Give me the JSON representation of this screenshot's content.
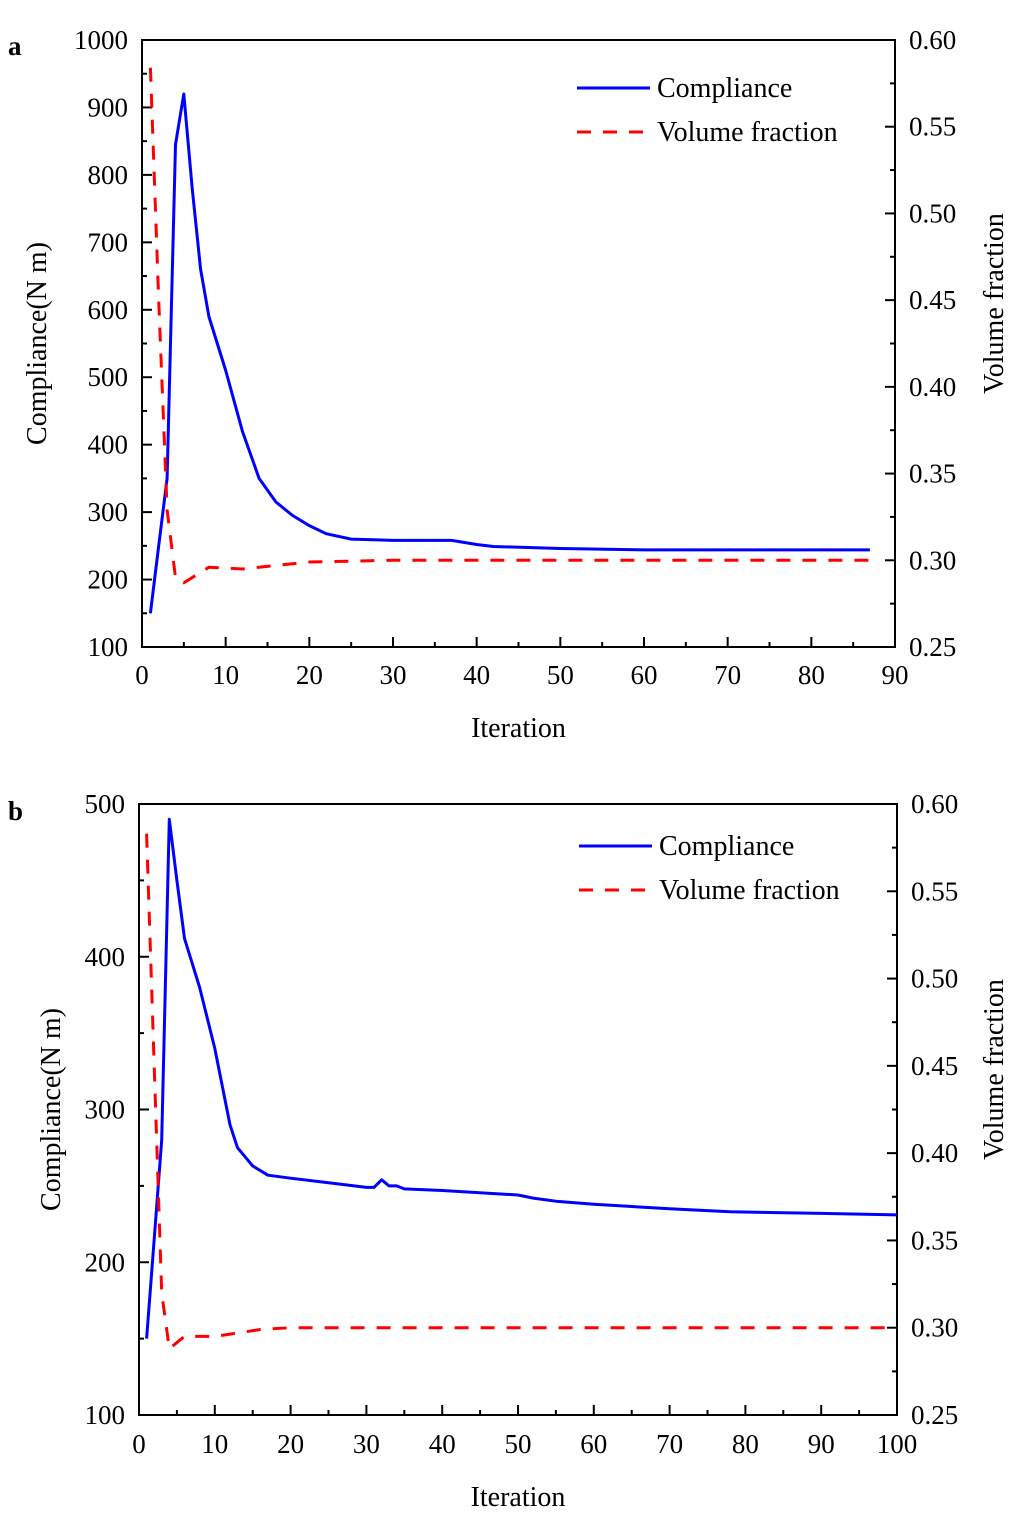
{
  "chart_data": [
    {
      "panel_label": "a",
      "type": "line",
      "xlabel": "Iteration",
      "ylabel": "Compliance(N m)",
      "y2label": "Volume fraction",
      "xlim": [
        0,
        90
      ],
      "ylim": [
        100,
        1000
      ],
      "y2lim": [
        0.25,
        0.6
      ],
      "xticks": [
        0,
        10,
        20,
        30,
        40,
        50,
        60,
        70,
        80,
        90
      ],
      "yticks": [
        100,
        200,
        300,
        400,
        500,
        600,
        700,
        800,
        900,
        1000
      ],
      "y2ticks": [
        "0.25",
        "0.30",
        "0.35",
        "0.40",
        "0.45",
        "0.50",
        "0.55",
        "0.60"
      ],
      "legend_position": "top-right",
      "series": [
        {
          "name": "Compliance",
          "axis": "left",
          "color": "#0000ff",
          "style": "solid",
          "x": [
            1,
            2,
            3,
            4,
            5,
            6,
            7,
            8,
            10,
            12,
            14,
            16,
            18,
            20,
            22,
            25,
            30,
            37,
            40,
            42,
            50,
            60,
            87
          ],
          "y": [
            150,
            250,
            350,
            845,
            920,
            780,
            660,
            590,
            510,
            420,
            350,
            315,
            295,
            280,
            268,
            260,
            258,
            258,
            252,
            249,
            246,
            244,
            244
          ]
        },
        {
          "name": "Volume fraction",
          "axis": "right",
          "color": "#ff0000",
          "style": "dashed",
          "x": [
            1,
            2,
            3,
            4,
            5,
            8,
            12,
            20,
            30,
            40,
            87
          ],
          "y": [
            0.584,
            0.45,
            0.329,
            0.29,
            0.287,
            0.296,
            0.295,
            0.299,
            0.3,
            0.3,
            0.3
          ]
        }
      ]
    },
    {
      "panel_label": "b",
      "type": "line",
      "xlabel": "Iteration",
      "ylabel": "Compliance(N m)",
      "y2label": "Volume fraction",
      "xlim": [
        0,
        100
      ],
      "ylim": [
        100,
        500
      ],
      "y2lim": [
        0.25,
        0.6
      ],
      "xticks": [
        0,
        10,
        20,
        30,
        40,
        50,
        60,
        70,
        80,
        90,
        100
      ],
      "yticks": [
        100,
        200,
        300,
        400,
        500
      ],
      "y2ticks": [
        "0.25",
        "0.30",
        "0.35",
        "0.40",
        "0.45",
        "0.50",
        "0.55",
        "0.60"
      ],
      "legend_position": "top-right",
      "series": [
        {
          "name": "Compliance",
          "axis": "left",
          "color": "#0000ff",
          "style": "solid",
          "x": [
            1,
            2,
            3,
            4,
            5,
            6,
            8,
            10,
            12,
            13,
            15,
            17,
            20,
            25,
            30,
            31,
            32,
            33,
            34,
            35,
            40,
            50,
            52,
            55,
            60,
            70,
            78,
            90,
            100
          ],
          "y": [
            150,
            215,
            280,
            490,
            450,
            412,
            380,
            340,
            290,
            275,
            263,
            257,
            255,
            252,
            249,
            249,
            254,
            250,
            250,
            248,
            247,
            244,
            242,
            240,
            238,
            235,
            233,
            232,
            231
          ]
        },
        {
          "name": "Volume fraction",
          "axis": "right",
          "color": "#ff0000",
          "style": "dashed",
          "x": [
            1,
            2,
            3,
            4,
            6,
            10,
            13,
            16,
            20,
            30,
            40,
            100
          ],
          "y": [
            0.583,
            0.45,
            0.32,
            0.288,
            0.295,
            0.295,
            0.297,
            0.299,
            0.3,
            0.3,
            0.3,
            0.3
          ]
        }
      ]
    }
  ]
}
